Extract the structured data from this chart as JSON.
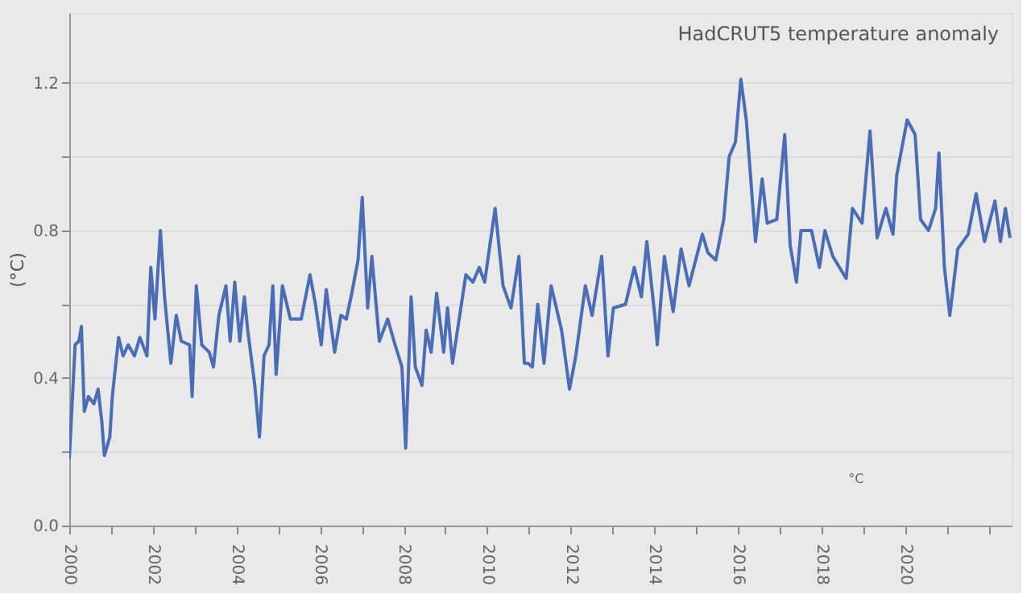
{
  "chart_data": {
    "type": "line",
    "title": "HadCRUT5 temperature anomaly",
    "ylabel": "(°C)",
    "annotations": [
      "°C"
    ],
    "x": [
      2000.0,
      2000.14,
      2000.23,
      2000.29,
      2000.36,
      2000.46,
      2000.59,
      2000.69,
      2000.78,
      2000.84,
      2000.97,
      2001.03,
      2001.18,
      2001.29,
      2001.41,
      2001.56,
      2001.69,
      2001.86,
      2001.95,
      2002.05,
      2002.18,
      2002.28,
      2002.43,
      2002.56,
      2002.68,
      2002.88,
      2002.94,
      2003.04,
      2003.17,
      2003.35,
      2003.45,
      2003.58,
      2003.75,
      2003.85,
      2003.96,
      2004.08,
      2004.19,
      2004.27,
      2004.44,
      2004.55,
      2004.66,
      2004.78,
      2004.87,
      2004.95,
      2005.1,
      2005.29,
      2005.55,
      2005.76,
      2005.89,
      2006.03,
      2006.15,
      2006.35,
      2006.5,
      2006.63,
      2006.76,
      2006.91,
      2007.01,
      2007.14,
      2007.24,
      2007.42,
      2007.62,
      2007.77,
      2007.96,
      2008.05,
      2008.18,
      2008.28,
      2008.44,
      2008.54,
      2008.66,
      2008.79,
      2008.96,
      2009.05,
      2009.17,
      2009.33,
      2009.49,
      2009.66,
      2009.81,
      2009.94,
      2010.19,
      2010.38,
      2010.57,
      2010.76,
      2010.89,
      2010.98,
      2011.08,
      2011.21,
      2011.36,
      2011.53,
      2011.78,
      2011.97,
      2012.12,
      2012.35,
      2012.51,
      2012.74,
      2012.89,
      2013.02,
      2013.31,
      2013.52,
      2013.69,
      2013.82,
      2014.01,
      2014.07,
      2014.24,
      2014.45,
      2014.64,
      2014.83,
      2015.15,
      2015.28,
      2015.47,
      2015.66,
      2015.79,
      2015.94,
      2016.07,
      2016.2,
      2016.42,
      2016.58,
      2016.7,
      2016.93,
      2017.12,
      2017.25,
      2017.4,
      2017.51,
      2017.76,
      2017.95,
      2018.08,
      2018.27,
      2018.59,
      2018.74,
      2018.97,
      2019.16,
      2019.33,
      2019.54,
      2019.71,
      2019.8,
      2020.05,
      2020.24,
      2020.37,
      2020.56,
      2020.73,
      2020.81,
      2020.94,
      2021.07,
      2021.26,
      2021.51,
      2021.7,
      2021.9,
      2022.15,
      2022.28,
      2022.4,
      2022.51
    ],
    "series": [
      {
        "color": "#4a6db5",
        "values": [
          0.18,
          0.49,
          0.5,
          0.54,
          0.31,
          0.35,
          0.33,
          0.37,
          0.28,
          0.19,
          0.24,
          0.35,
          0.51,
          0.46,
          0.49,
          0.46,
          0.51,
          0.46,
          0.7,
          0.56,
          0.8,
          0.62,
          0.44,
          0.57,
          0.5,
          0.49,
          0.35,
          0.65,
          0.49,
          0.47,
          0.43,
          0.57,
          0.65,
          0.5,
          0.66,
          0.5,
          0.62,
          0.53,
          0.38,
          0.24,
          0.46,
          0.49,
          0.65,
          0.41,
          0.65,
          0.56,
          0.56,
          0.68,
          0.6,
          0.49,
          0.64,
          0.47,
          0.57,
          0.56,
          0.63,
          0.72,
          0.89,
          0.59,
          0.73,
          0.5,
          0.56,
          0.5,
          0.43,
          0.21,
          0.62,
          0.43,
          0.38,
          0.53,
          0.47,
          0.63,
          0.47,
          0.59,
          0.44,
          0.56,
          0.68,
          0.66,
          0.7,
          0.66,
          0.86,
          0.65,
          0.59,
          0.73,
          0.44,
          0.44,
          0.43,
          0.6,
          0.44,
          0.65,
          0.53,
          0.37,
          0.46,
          0.65,
          0.57,
          0.73,
          0.46,
          0.59,
          0.6,
          0.7,
          0.62,
          0.77,
          0.57,
          0.49,
          0.73,
          0.58,
          0.75,
          0.65,
          0.79,
          0.74,
          0.72,
          0.83,
          1.0,
          1.04,
          1.21,
          1.1,
          0.77,
          0.94,
          0.82,
          0.83,
          1.06,
          0.76,
          0.66,
          0.8,
          0.8,
          0.7,
          0.8,
          0.73,
          0.67,
          0.86,
          0.82,
          1.07,
          0.78,
          0.86,
          0.79,
          0.95,
          1.1,
          1.06,
          0.83,
          0.8,
          0.86,
          1.01,
          0.7,
          0.57,
          0.75,
          0.79,
          0.9,
          0.77,
          0.88,
          0.77,
          0.86,
          0.78
        ]
      }
    ],
    "xlim": [
      2000,
      2022.55
    ],
    "xticks": [
      2000,
      {
        "value": 2001,
        "label": null
      },
      2002,
      {
        "value": 2003,
        "label": null
      },
      2004,
      {
        "value": 2005,
        "label": null
      },
      2006,
      {
        "value": 2007,
        "label": null
      },
      2008,
      {
        "value": 2009,
        "label": null
      },
      2010,
      {
        "value": 2011,
        "label": null
      },
      2012,
      {
        "value": 2013,
        "label": null
      },
      2014,
      {
        "value": 2015,
        "label": null
      },
      2016,
      {
        "value": 2017,
        "label": null
      },
      2018,
      {
        "value": 2019,
        "label": null
      },
      2020,
      {
        "value": 2021,
        "label": null
      },
      {
        "value": 2022,
        "label": null
      }
    ],
    "ylim": [
      0,
      1.39
    ],
    "yticks": [
      {
        "value": 0,
        "label": "0.0"
      },
      {
        "value": 0.2,
        "label": null
      },
      0.4,
      {
        "value": 0.6,
        "label": null
      },
      0.8,
      {
        "value": 1.0,
        "label": null
      },
      1.2
    ],
    "grid": "y",
    "marker": "none",
    "line_style": "solid"
  }
}
